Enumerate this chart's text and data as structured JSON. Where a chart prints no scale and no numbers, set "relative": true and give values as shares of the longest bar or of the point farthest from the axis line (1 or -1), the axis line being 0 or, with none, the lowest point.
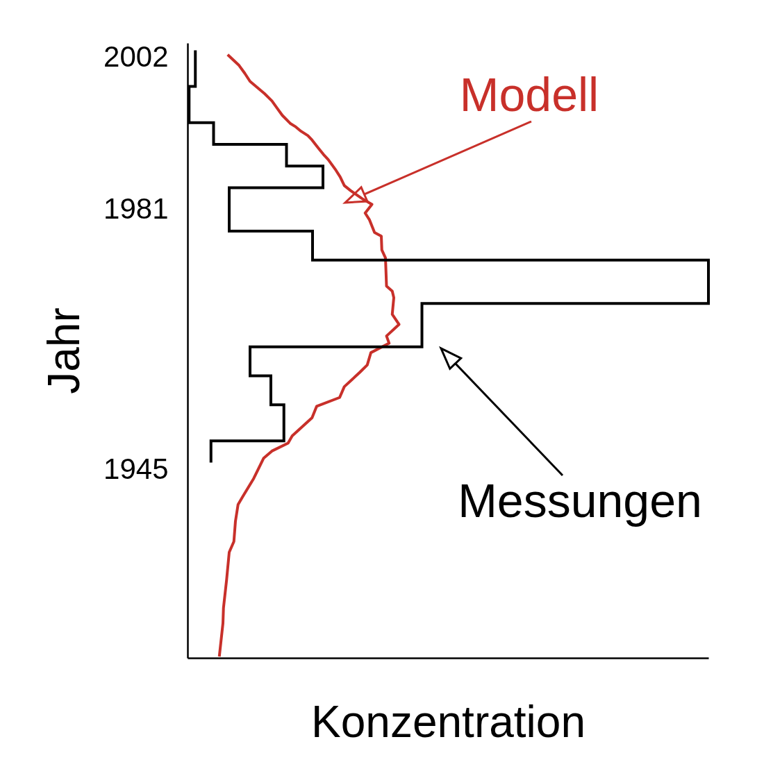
{
  "chart_data": {
    "type": "line",
    "orientation": "horizontal",
    "relative": true,
    "xlabel": "Konzentration",
    "ylabel": "Jahr",
    "ylim": [
      1919,
      2004
    ],
    "yticks": [
      1945,
      1981,
      2002
    ],
    "grid": false,
    "series": [
      {
        "name": "Modell",
        "color": "#c8302a",
        "x": [
          1919.2,
          1923.8,
          1925.9,
          1929.8,
          1933.6,
          1935.1,
          1937.9,
          1940.2,
          1941.3,
          1943.8,
          1946.6,
          1947.6,
          1948.7,
          1949.7,
          1952.2,
          1953.8,
          1955.0,
          1956.5,
          1958.5,
          1959.5,
          1961.2,
          1962.5,
          1963.5,
          1965.1,
          1966.5,
          1968.8,
          1969.7,
          1970.4,
          1974.3,
          1975.4,
          1977.3,
          1977.8,
          1979.6,
          1980.5,
          1981.7,
          1982.5,
          1983.0,
          1983.6,
          1984.3,
          1985.5,
          1986.4,
          1987.9,
          1988.6,
          1989.5,
          1990.6,
          1991.2,
          1991.8,
          1992.4,
          1992.9,
          1994.0,
          1995.0,
          1996.0,
          1997.0,
          1998.7,
          1999.8,
          2000.9,
          2002.4
        ],
        "values": [
          0.061,
          0.068,
          0.069,
          0.075,
          0.08,
          0.089,
          0.092,
          0.097,
          0.106,
          0.127,
          0.146,
          0.162,
          0.193,
          0.201,
          0.239,
          0.248,
          0.292,
          0.301,
          0.331,
          0.345,
          0.352,
          0.387,
          0.382,
          0.406,
          0.393,
          0.396,
          0.393,
          0.382,
          0.38,
          0.373,
          0.372,
          0.359,
          0.349,
          0.341,
          0.354,
          0.335,
          0.325,
          0.313,
          0.301,
          0.293,
          0.285,
          0.27,
          0.261,
          0.251,
          0.239,
          0.231,
          0.218,
          0.208,
          0.197,
          0.182,
          0.172,
          0.162,
          0.148,
          0.12,
          0.11,
          0.099,
          0.077
        ]
      },
      {
        "name": "Messungen",
        "color": "#000000",
        "type": "step",
        "x": [
          1946,
          1949,
          1954,
          1958,
          1962,
          1968,
          1974,
          1978,
          1984,
          1987,
          1990,
          1993,
          1998,
          2003
        ],
        "values": [
          0.045,
          0.185,
          0.16,
          0.12,
          0.45,
          1,
          0.24,
          0.08,
          0.26,
          0.19,
          0.05,
          0.003,
          0.015,
          0.015
        ]
      }
    ]
  }
}
